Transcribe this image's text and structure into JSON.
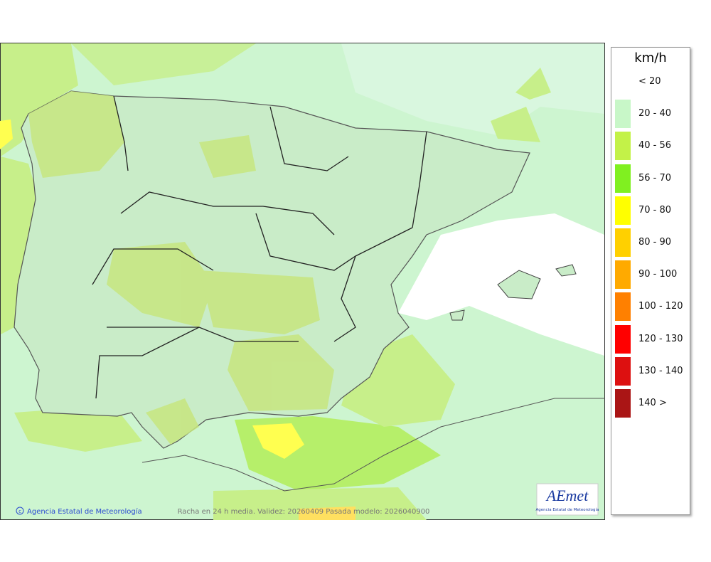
{
  "legend": {
    "unit": "km/h",
    "items": [
      {
        "label": "< 20"
      },
      {
        "label": "20 - 40",
        "color": "#c8f7c8"
      },
      {
        "label": "40 - 56",
        "color": "#c3f248"
      },
      {
        "label": "56 - 70",
        "color": "#80f020"
      },
      {
        "label": "70 - 80",
        "color": "#ffff00"
      },
      {
        "label": "80 - 90",
        "color": "#ffd000"
      },
      {
        "label": "90 - 100",
        "color": "#ffaa00"
      },
      {
        "label": "100 - 120",
        "color": "#ff8000"
      },
      {
        "label": "120 - 130",
        "color": "#ff0000"
      },
      {
        "label": "130 - 140",
        "color": "#dd1010"
      },
      {
        "label": "140 >",
        "color": "#aa1515"
      }
    ]
  },
  "map": {
    "credit": "Agencia Estatal de Meteorología",
    "caption": "Racha en 24 h media. Validez: 20260409 Pasada modelo: 2026040900"
  },
  "logo": {
    "text": "AEmet",
    "subtitle": "Agencia Estatal de Meteorología"
  }
}
